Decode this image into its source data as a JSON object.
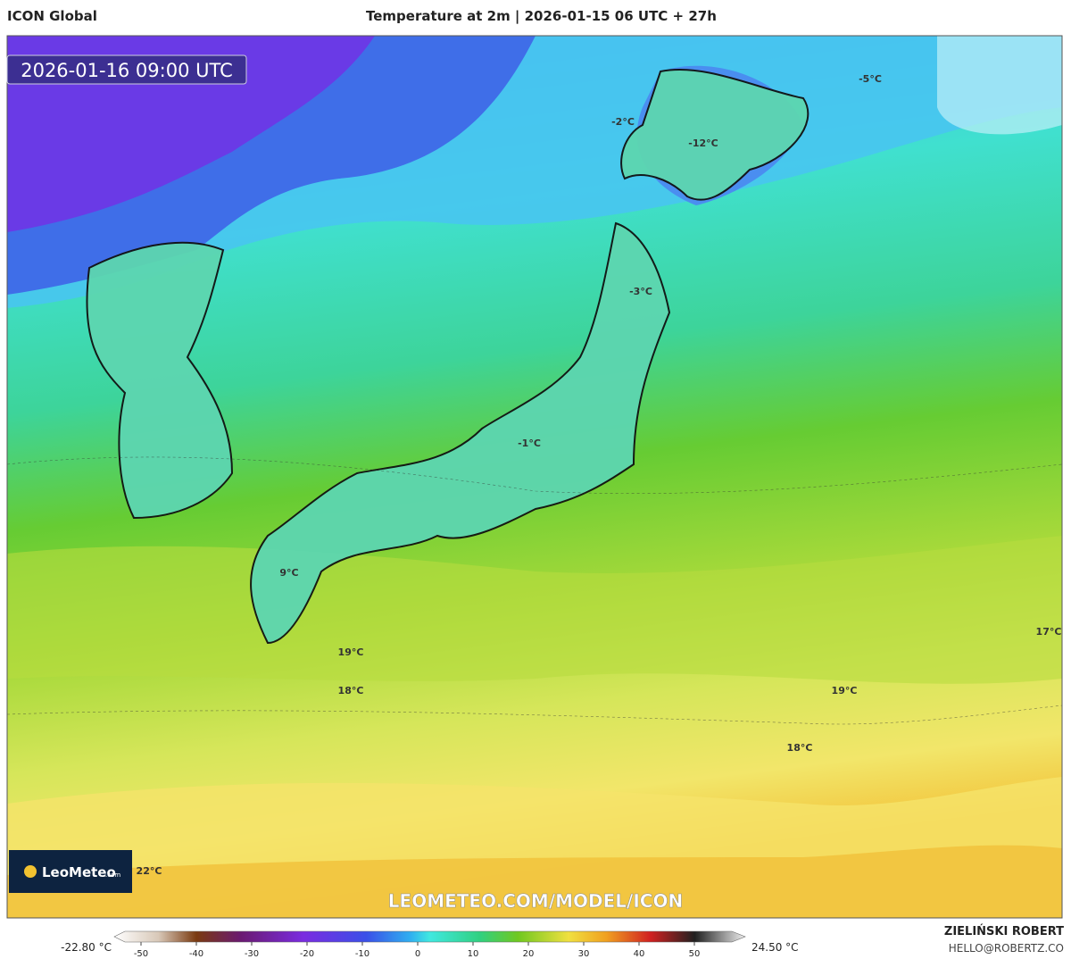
{
  "header": {
    "model": "ICON Global",
    "title": "Temperature at 2m | 2026-01-15 06 UTC + 27h"
  },
  "timestamp": "2026-01-16 09:00 UTC",
  "map_labels": [
    "-5°C",
    "-2°C",
    "-12°C",
    "-3°C",
    "-1°C",
    "9°C",
    "19°C",
    "18°C",
    "19°C",
    "18°C",
    "17°C",
    "22°C"
  ],
  "logo": {
    "name": "LeoMeteo",
    "suffix": ".com"
  },
  "watermark": "LEOMETEO.COM/MODEL/ICON",
  "legend": {
    "min_label": "-22.80 °C",
    "max_label": "24.50 °C",
    "ticks": [
      -50,
      -40,
      -30,
      -20,
      -10,
      0,
      10,
      20,
      30,
      40,
      50
    ]
  },
  "credit": {
    "author": "ZIELIŃSKI ROBERT",
    "email": "HELLO@ROBERTZ.CO"
  }
}
